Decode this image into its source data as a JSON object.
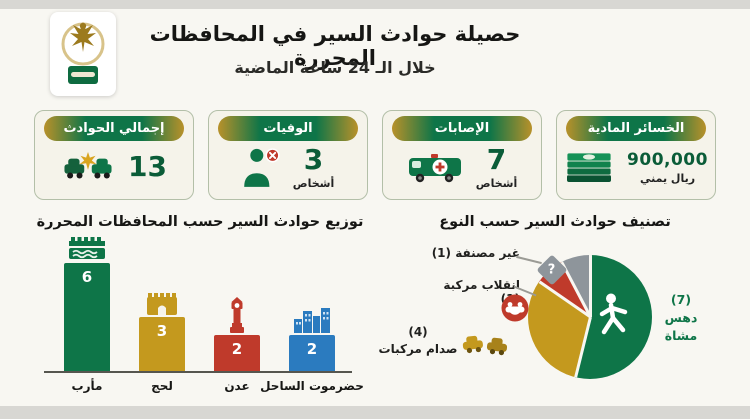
{
  "header": {
    "title": "حصيلة حوادث السير في المحافظات المحررة",
    "subtitle": "خلال الـ 24 ساعة الماضية",
    "logo": "military-emblem"
  },
  "stats": {
    "cards": [
      {
        "title": "إجمالي الحوادث",
        "value": "13",
        "unit": "",
        "icon": "car-crash-icon"
      },
      {
        "title": "الوفيات",
        "value": "3",
        "unit": "أشخاص",
        "icon": "deceased-person-icon"
      },
      {
        "title": "الإصابات",
        "value": "7",
        "unit": "أشخاص",
        "icon": "ambulance-icon"
      },
      {
        "title": "الخسائر المادية",
        "value": "900,000",
        "unit": "ريال يمني",
        "icon": "cash-stack-icon"
      }
    ]
  },
  "chart_data": [
    {
      "type": "bar",
      "title": "توزيع حوادث السير حسب المحافظات المحررة",
      "categories": [
        "مأرب",
        "لحج",
        "عدن",
        "حضرموت الساحل"
      ],
      "values": [
        6,
        3,
        2,
        2
      ],
      "colors": [
        "#0e7548",
        "#c4991e",
        "#bf3a2b",
        "#2b7bbf"
      ],
      "icons": [
        "dam-icon",
        "fort-icon",
        "clock-tower-icon",
        "city-skyline-icon"
      ],
      "ylim": [
        0,
        6.5
      ],
      "grid": false,
      "value_labels": "inside-top"
    },
    {
      "type": "pie",
      "title": "تصنيف حوادث السير حسب النوع",
      "labels": [
        "دهس مشاة",
        "صدام مركبات",
        "انقلاب مركبة",
        "غير مصنفة"
      ],
      "values": [
        7,
        4,
        1,
        1
      ],
      "colors": [
        "#0e7548",
        "#c4991e",
        "#bf3a2b",
        "#8e959b"
      ],
      "icons": [
        "pedestrian-icon",
        "car-collision-icon",
        "rollover-icon",
        "question-icon"
      ],
      "start_angle_deg": 0,
      "direction": "clockwise",
      "legend_position": "callouts"
    }
  ],
  "pie_callouts": {
    "unclassified": "غير مصنفة (1)",
    "rollover": "انقلاب مركبة (1)",
    "collision_value": "(4)",
    "collision_label": "صدام مركبات",
    "pedestrian_value": "(7)",
    "pedestrian_label": "دهس مشاة",
    "question_glyph": "?"
  },
  "colors": {
    "green": "#0e7548",
    "gold": "#c4991e",
    "red": "#bf3a2b",
    "blue": "#2b7bbf",
    "gray": "#8e959b",
    "number_green": "#0a5c38"
  }
}
